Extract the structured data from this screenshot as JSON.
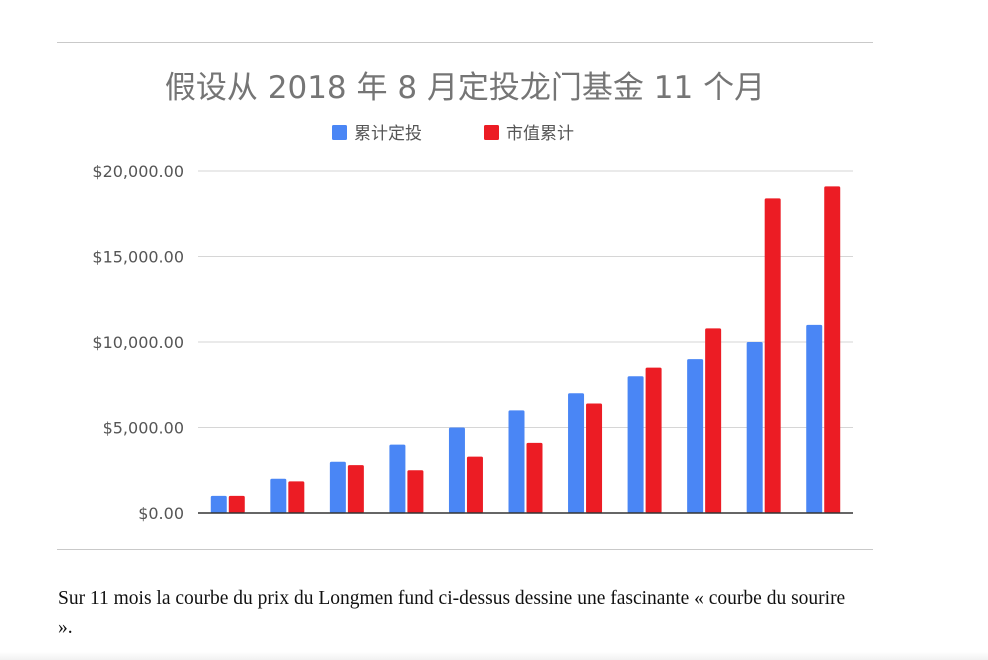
{
  "chart_data": {
    "type": "bar",
    "title": "假设从 2018 年 8 月定投龙门基金 11 个月",
    "categories": [
      "",
      "",
      "",
      "",
      "",
      "",
      "",
      "",
      "",
      "",
      ""
    ],
    "series": [
      {
        "name": "累计定投",
        "color": "#4a86f5",
        "values": [
          1000,
          2000,
          3000,
          4000,
          5000,
          6000,
          7000,
          8000,
          9000,
          10000,
          11000
        ]
      },
      {
        "name": "市值累计",
        "color": "#ec1c24",
        "values": [
          1000,
          1850,
          2800,
          2500,
          3300,
          4100,
          6400,
          8500,
          10800,
          18400,
          19100
        ]
      }
    ],
    "y_ticks": [
      0,
      5000,
      10000,
      15000,
      20000
    ],
    "y_tick_labels": [
      "$0.00",
      "$5,000.00",
      "$10,000.00",
      "$15,000.00",
      "$20,000.00"
    ],
    "ylim": [
      0,
      20000
    ],
    "grid": true,
    "legend_position": "top-center"
  },
  "caption": "Sur 11 mois la courbe du prix du Longmen fund ci-dessus dessine une fascinante « courbe du sourire »."
}
